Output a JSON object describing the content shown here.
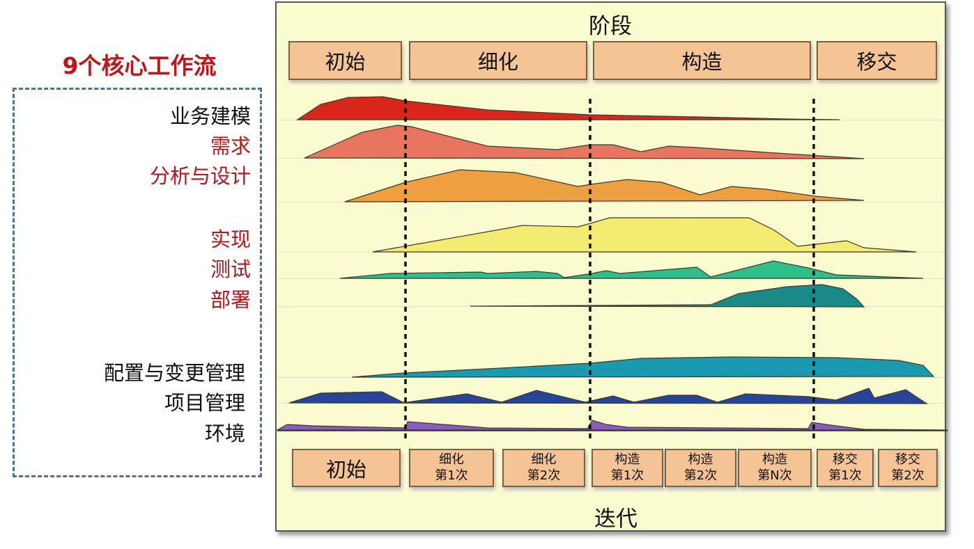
{
  "left_title": "9个核心工作流",
  "workflows": [
    {
      "label": "业务建模",
      "color": "#d8261a",
      "label_color": "black"
    },
    {
      "label": "需求",
      "color": "#e87560",
      "label_color": "red"
    },
    {
      "label": "分析与设计",
      "color": "#eea040",
      "label_color": "red"
    },
    {
      "label": "实现",
      "color": "#f4ec70",
      "label_color": "red"
    },
    {
      "label": "测试",
      "color": "#2ec08a",
      "label_color": "red"
    },
    {
      "label": "部署",
      "color": "#1a8a88",
      "label_color": "red"
    },
    {
      "label": "配置与变更管理",
      "color": "#1a9ab0",
      "label_color": "black"
    },
    {
      "label": "项目管理",
      "color": "#26449a",
      "label_color": "black"
    },
    {
      "label": "环境",
      "color": "#8a5cc0",
      "label_color": "black"
    }
  ],
  "phases_title": "阶段",
  "phases": [
    "初始",
    "细化",
    "构造",
    "移交"
  ],
  "iterations_title": "迭代",
  "iterations": [
    {
      "line1": "初始",
      "line2": ""
    },
    {
      "line1": "细化",
      "line2": "第1次"
    },
    {
      "line1": "细化",
      "line2": "第2次"
    },
    {
      "line1": "构造",
      "line2": "第1次"
    },
    {
      "line1": "构造",
      "line2": "第2次"
    },
    {
      "line1": "构造",
      "line2": "第N次"
    },
    {
      "line1": "移交",
      "line2": "第1次"
    },
    {
      "line1": "移交",
      "line2": "第2次"
    }
  ]
}
